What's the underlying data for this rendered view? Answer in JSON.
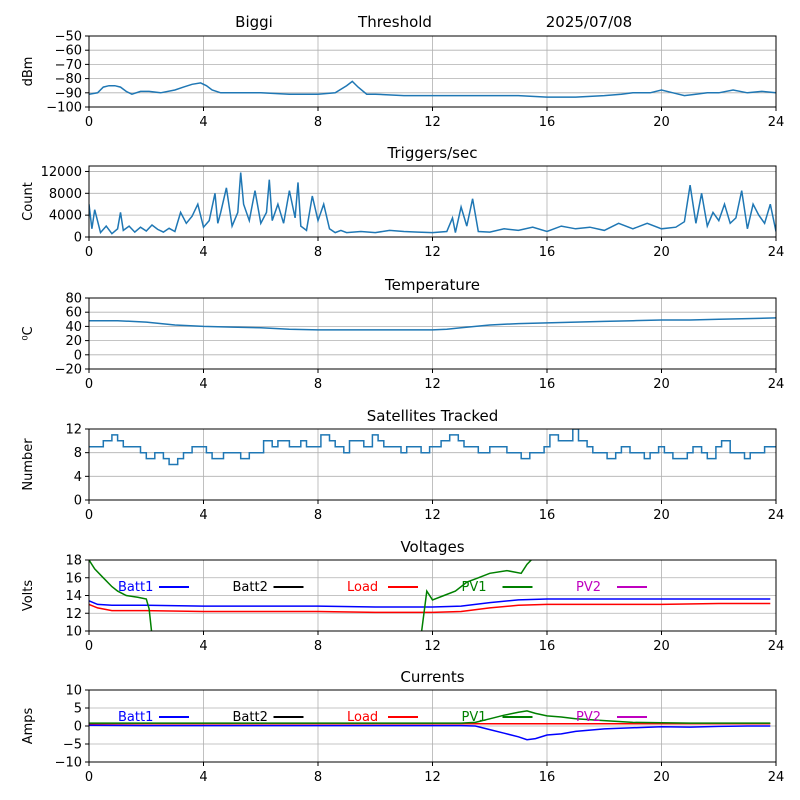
{
  "header": {
    "station": "Biggi",
    "label": "Threshold",
    "date": "2025/07/08"
  },
  "chart_data": [
    {
      "type": "line",
      "title": "",
      "ylabel": "dBm",
      "xlim": [
        0,
        24
      ],
      "ylim": [
        -100,
        -50
      ],
      "xticks": [
        0,
        4,
        8,
        12,
        16,
        20,
        24
      ],
      "yticks": [
        -100,
        -90,
        -80,
        -70,
        -60,
        -50
      ],
      "grid": true,
      "series": [
        {
          "color": "#1f77b4",
          "x": [
            0,
            0.3,
            0.5,
            0.7,
            0.9,
            1.1,
            1.3,
            1.5,
            1.8,
            2.1,
            2.5,
            3.0,
            3.3,
            3.6,
            3.9,
            4.1,
            4.3,
            4.6,
            5.0,
            6.0,
            7.0,
            8.0,
            8.6,
            9.0,
            9.2,
            9.4,
            9.7,
            10.0,
            11.0,
            12.0,
            13.0,
            14.0,
            15.0,
            16.0,
            17.0,
            18.0,
            18.6,
            19.0,
            19.6,
            20.0,
            20.4,
            20.8,
            21.2,
            21.6,
            22.0,
            22.5,
            23.0,
            23.5,
            24.0
          ],
          "y": [
            -91,
            -90,
            -86,
            -85,
            -85,
            -86,
            -89,
            -91,
            -89,
            -89,
            -90,
            -88,
            -86,
            -84,
            -83,
            -85,
            -88,
            -90,
            -90,
            -90,
            -91,
            -91,
            -90,
            -85,
            -82,
            -86,
            -91,
            -91,
            -92,
            -92,
            -92,
            -92,
            -92,
            -93,
            -93,
            -92,
            -91,
            -90,
            -90,
            -88,
            -90,
            -92,
            -91,
            -90,
            -90,
            -88,
            -90,
            -89,
            -90
          ]
        }
      ]
    },
    {
      "type": "line",
      "title": "Triggers/sec",
      "ylabel": "Count",
      "xlim": [
        0,
        24
      ],
      "ylim": [
        0,
        13000
      ],
      "xticks": [
        0,
        4,
        8,
        12,
        16,
        20,
        24
      ],
      "yticks": [
        0,
        4000,
        8000,
        12000
      ],
      "grid": true,
      "series": [
        {
          "color": "#1f77b4",
          "x": [
            0,
            0.1,
            0.2,
            0.4,
            0.6,
            0.8,
            1.0,
            1.1,
            1.2,
            1.4,
            1.6,
            1.8,
            2.0,
            2.2,
            2.4,
            2.6,
            2.8,
            3.0,
            3.2,
            3.4,
            3.6,
            3.8,
            4.0,
            4.2,
            4.4,
            4.5,
            4.6,
            4.8,
            5.0,
            5.2,
            5.3,
            5.4,
            5.6,
            5.8,
            6.0,
            6.2,
            6.3,
            6.4,
            6.6,
            6.8,
            7.0,
            7.2,
            7.3,
            7.4,
            7.6,
            7.8,
            8.0,
            8.2,
            8.4,
            8.6,
            8.8,
            9.0,
            9.5,
            10.0,
            10.5,
            11.0,
            11.5,
            12.0,
            12.5,
            12.7,
            12.8,
            13.0,
            13.2,
            13.4,
            13.6,
            14.0,
            14.5,
            15.0,
            15.5,
            16.0,
            16.5,
            17.0,
            17.5,
            18.0,
            18.5,
            19.0,
            19.5,
            20.0,
            20.5,
            20.8,
            21.0,
            21.2,
            21.4,
            21.6,
            21.8,
            22.0,
            22.2,
            22.4,
            22.6,
            22.8,
            23.0,
            23.2,
            23.4,
            23.6,
            23.8,
            24.0
          ],
          "y": [
            6000,
            1500,
            5000,
            800,
            2000,
            600,
            1500,
            4500,
            1200,
            2000,
            900,
            1800,
            1100,
            2200,
            1400,
            900,
            1600,
            1000,
            4500,
            2500,
            3800,
            6000,
            1800,
            3000,
            8000,
            2500,
            4500,
            9000,
            2000,
            4500,
            11800,
            6000,
            3000,
            8500,
            2500,
            4500,
            10500,
            3000,
            6000,
            2500,
            8500,
            3500,
            10000,
            2000,
            1200,
            7500,
            3000,
            6000,
            1500,
            800,
            1200,
            800,
            1000,
            800,
            1200,
            1000,
            900,
            800,
            1000,
            3500,
            800,
            5500,
            2000,
            7000,
            1000,
            900,
            1500,
            1200,
            1800,
            1000,
            2000,
            1500,
            1800,
            1200,
            2500,
            1500,
            2500,
            1500,
            1800,
            2800,
            9500,
            2500,
            8000,
            2000,
            4500,
            3000,
            6000,
            2500,
            3500,
            8500,
            1500,
            6000,
            4000,
            2500,
            6000,
            1000
          ]
        }
      ]
    },
    {
      "type": "line",
      "title": "Temperature",
      "ylabel": "⁰C",
      "xlim": [
        0,
        24
      ],
      "ylim": [
        -20,
        80
      ],
      "xticks": [
        0,
        4,
        8,
        12,
        16,
        20,
        24
      ],
      "yticks": [
        -20,
        0,
        20,
        40,
        60,
        80
      ],
      "grid": true,
      "series": [
        {
          "color": "#1f77b4",
          "x": [
            0,
            1,
            2,
            3,
            4,
            5,
            6,
            7,
            8,
            9,
            10,
            11,
            12,
            12.5,
            13,
            14,
            15,
            16,
            17,
            18,
            19,
            20,
            21,
            22,
            23,
            24
          ],
          "y": [
            48,
            48,
            46,
            42,
            40,
            39,
            38,
            36,
            35,
            35,
            35,
            35,
            35,
            36,
            38,
            42,
            44,
            45,
            46,
            47,
            48,
            49,
            49,
            50,
            51,
            52
          ]
        }
      ]
    },
    {
      "type": "line",
      "title": "Satellites Tracked",
      "ylabel": "Number",
      "xlim": [
        0,
        24
      ],
      "ylim": [
        0,
        12
      ],
      "xticks": [
        0,
        4,
        8,
        12,
        16,
        20,
        24
      ],
      "yticks": [
        0,
        4,
        8,
        12
      ],
      "grid": true,
      "series": [
        {
          "color": "#1f77b4",
          "step": true,
          "x": [
            0,
            0.5,
            0.8,
            1.0,
            1.2,
            1.8,
            2.0,
            2.3,
            2.6,
            2.8,
            3.1,
            3.3,
            3.6,
            4.1,
            4.3,
            4.7,
            5.3,
            5.6,
            6.1,
            6.4,
            6.6,
            7.0,
            7.4,
            7.6,
            8.1,
            8.4,
            8.6,
            8.9,
            9.1,
            9.6,
            9.9,
            10.1,
            10.3,
            10.9,
            11.1,
            11.6,
            11.9,
            12.3,
            12.6,
            12.9,
            13.1,
            13.6,
            14.0,
            14.6,
            15.1,
            15.4,
            15.9,
            16.1,
            16.4,
            16.9,
            17.1,
            17.4,
            17.6,
            18.1,
            18.4,
            18.6,
            18.9,
            19.4,
            19.6,
            19.9,
            20.1,
            20.4,
            20.9,
            21.1,
            21.4,
            21.6,
            21.9,
            22.1,
            22.4,
            22.9,
            23.1,
            23.6,
            24.0
          ],
          "y": [
            9,
            10,
            11,
            10,
            9,
            8,
            7,
            8,
            7,
            6,
            7,
            8,
            9,
            8,
            7,
            8,
            7,
            8,
            10,
            9,
            10,
            9,
            10,
            9,
            11,
            10,
            9,
            8,
            10,
            9,
            11,
            10,
            9,
            8,
            9,
            8,
            9,
            10,
            11,
            10,
            9,
            8,
            9,
            8,
            7,
            8,
            9,
            11,
            10,
            12,
            10,
            9,
            8,
            7,
            8,
            9,
            8,
            7,
            8,
            9,
            8,
            7,
            8,
            9,
            8,
            7,
            9,
            10,
            8,
            7,
            8,
            9,
            9
          ]
        }
      ]
    },
    {
      "type": "line",
      "title": "Voltages",
      "ylabel": "Volts",
      "xlim": [
        0,
        24
      ],
      "ylim": [
        10,
        18
      ],
      "xticks": [
        0,
        4,
        8,
        12,
        16,
        20,
        24
      ],
      "yticks": [
        10,
        12,
        14,
        16,
        18
      ],
      "grid": true,
      "legend": "top",
      "series": [
        {
          "name": "Batt1",
          "color": "#0000ff",
          "x": [
            0,
            0.3,
            0.8,
            2,
            4,
            6,
            8,
            10,
            12,
            13,
            14,
            15,
            16,
            18,
            20,
            22,
            23.8
          ],
          "y": [
            13.4,
            13.0,
            12.9,
            12.9,
            12.8,
            12.8,
            12.8,
            12.7,
            12.7,
            12.8,
            13.2,
            13.5,
            13.6,
            13.6,
            13.6,
            13.6,
            13.6
          ]
        },
        {
          "name": "Batt2",
          "color": "#000000",
          "x": [],
          "y": []
        },
        {
          "name": "Load",
          "color": "#ff0000",
          "x": [
            0,
            0.3,
            0.8,
            2,
            4,
            6,
            8,
            10,
            12,
            13,
            14,
            15,
            16,
            18,
            20,
            22,
            23.8
          ],
          "y": [
            13.0,
            12.6,
            12.3,
            12.3,
            12.2,
            12.2,
            12.2,
            12.1,
            12.1,
            12.2,
            12.6,
            12.9,
            13.0,
            13.0,
            13.0,
            13.1,
            13.1
          ]
        },
        {
          "name": "PV1",
          "color": "#008000",
          "x": [
            0,
            0.2,
            0.5,
            0.8,
            1.0,
            1.3,
            1.7,
            2.0,
            2.1,
            2.2,
            11.6,
            11.8,
            12.0,
            12.4,
            12.8,
            13.2,
            13.6,
            14.0,
            14.6,
            15.1,
            15.3,
            15.6
          ],
          "y": [
            18,
            17,
            16,
            15,
            14.5,
            14,
            13.8,
            13.6,
            12.5,
            9.5,
            9.5,
            14.5,
            13.5,
            14.0,
            14.5,
            15.5,
            16.0,
            16.5,
            16.8,
            16.5,
            17.5,
            18.5
          ]
        },
        {
          "name": "PV2",
          "color": "#bf00bf",
          "x": [],
          "y": []
        }
      ]
    },
    {
      "type": "line",
      "title": "Currents",
      "ylabel": "Amps",
      "xlim": [
        0,
        24
      ],
      "ylim": [
        -10,
        10
      ],
      "xticks": [
        0,
        4,
        8,
        12,
        16,
        20,
        24
      ],
      "yticks": [
        -10,
        -5,
        0,
        5,
        10
      ],
      "grid": true,
      "legend": "top",
      "series": [
        {
          "name": "Batt1",
          "color": "#0000ff",
          "x": [
            0,
            2,
            4,
            6,
            8,
            10,
            12,
            13,
            13.5,
            14,
            14.5,
            15,
            15.3,
            15.6,
            16,
            16.5,
            17,
            18,
            19,
            20,
            21,
            22,
            23,
            23.8
          ],
          "y": [
            0.2,
            0.1,
            0.1,
            0.1,
            0.1,
            0.1,
            0.1,
            0.1,
            0,
            -1,
            -2,
            -3,
            -3.8,
            -3.5,
            -2.5,
            -2.2,
            -1.5,
            -0.8,
            -0.5,
            -0.2,
            -0.3,
            -0.1,
            0,
            0
          ]
        },
        {
          "name": "Batt2",
          "color": "#000000",
          "x": [],
          "y": []
        },
        {
          "name": "Load",
          "color": "#ff0000",
          "x": [
            0,
            4,
            8,
            12,
            16,
            20,
            23.8
          ],
          "y": [
            0.6,
            0.6,
            0.6,
            0.6,
            0.6,
            0.6,
            0.6
          ]
        },
        {
          "name": "PV1",
          "color": "#008000",
          "x": [
            0,
            2,
            4,
            6,
            8,
            10,
            12,
            13,
            13.5,
            14,
            14.5,
            15,
            15.3,
            15.6,
            16,
            16.5,
            17,
            18,
            19,
            20,
            21,
            22,
            23,
            23.8
          ],
          "y": [
            0.8,
            0.8,
            0.8,
            0.8,
            0.8,
            0.8,
            0.8,
            0.8,
            1.0,
            2.0,
            3.0,
            3.8,
            4.2,
            3.5,
            2.8,
            2.5,
            2.0,
            1.5,
            1.0,
            0.9,
            0.8,
            0.8,
            0.8,
            0.8
          ]
        },
        {
          "name": "PV2",
          "color": "#bf00bf",
          "x": [],
          "y": []
        }
      ]
    }
  ]
}
